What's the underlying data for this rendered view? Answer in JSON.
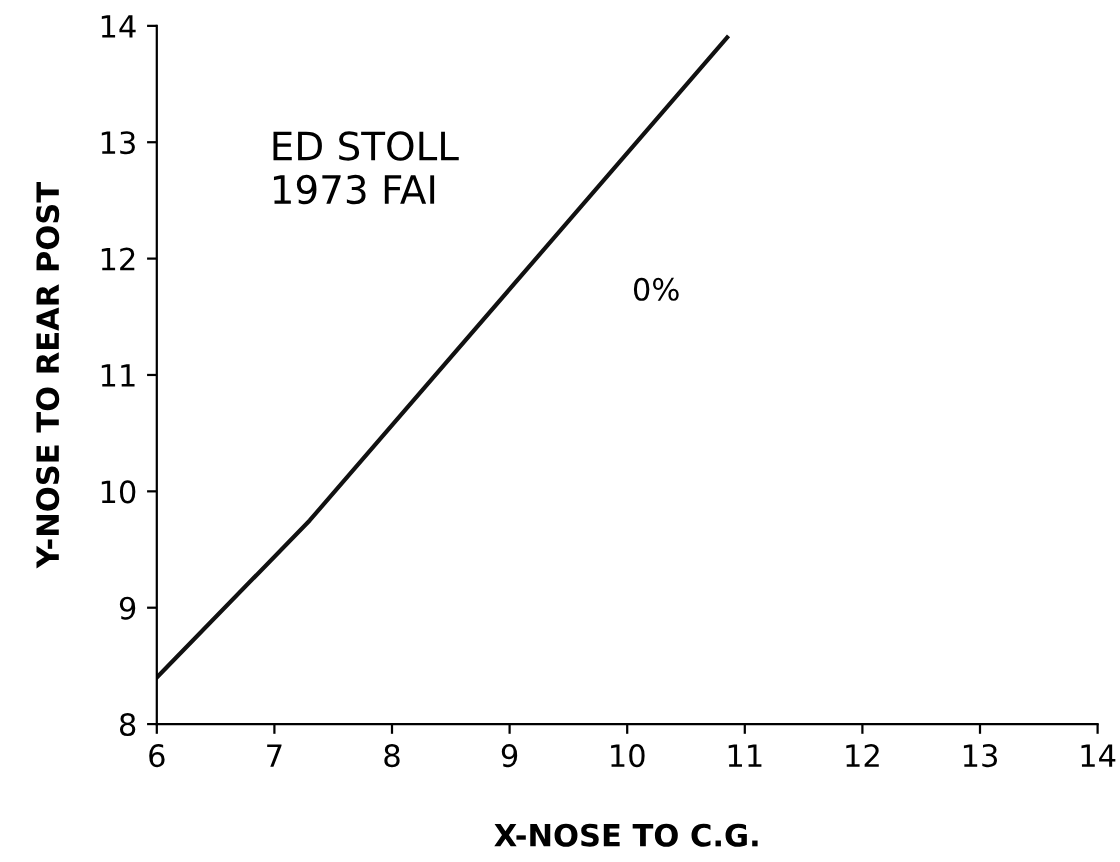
{
  "chart_data": {
    "type": "line",
    "xlabel": "X-NOSE TO C.G.",
    "ylabel": "Y-NOSE TO REAR POST",
    "x": [
      6,
      7.3,
      10.85
    ],
    "series": [
      {
        "color": "#111111",
        "values": [
          8.4,
          9.75,
          13.9
        ]
      }
    ],
    "annotations": [
      "ED STOLL\n1973 FAI",
      "0%"
    ],
    "xlim": [
      6,
      14
    ],
    "ylim": [
      8,
      14
    ],
    "xticks": [
      6,
      7,
      8,
      9,
      10,
      11,
      12,
      13,
      14
    ],
    "yticks": [
      8,
      9,
      10,
      11,
      12,
      13,
      14
    ],
    "grid": false,
    "legend": false,
    "marker": "none",
    "line_style": "solid"
  }
}
